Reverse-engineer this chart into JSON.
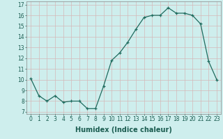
{
  "x": [
    0,
    1,
    2,
    3,
    4,
    5,
    6,
    7,
    8,
    9,
    10,
    11,
    12,
    13,
    14,
    15,
    16,
    17,
    18,
    19,
    20,
    21,
    22,
    23
  ],
  "y": [
    10.1,
    8.5,
    8.0,
    8.5,
    7.9,
    8.0,
    8.0,
    7.3,
    7.3,
    9.4,
    11.8,
    12.5,
    13.5,
    14.7,
    15.8,
    16.0,
    16.0,
    16.7,
    16.2,
    16.2,
    16.0,
    15.2,
    11.7,
    10.0
  ],
  "x_ticks": [
    0,
    1,
    2,
    3,
    4,
    5,
    6,
    7,
    8,
    9,
    10,
    11,
    12,
    13,
    14,
    15,
    16,
    17,
    18,
    19,
    20,
    21,
    22,
    23
  ],
  "x_tick_labels": [
    "0",
    "1",
    "2",
    "3",
    "4",
    "5",
    "6",
    "7",
    "8",
    "9",
    "10",
    "11",
    "12",
    "13",
    "14",
    "15",
    "16",
    "17",
    "18",
    "19",
    "20",
    "21",
    "22",
    "23"
  ],
  "y_ticks": [
    7,
    8,
    9,
    10,
    11,
    12,
    13,
    14,
    15,
    16,
    17
  ],
  "xlabel": "Humidex (Indice chaleur)",
  "ylim": [
    6.8,
    17.3
  ],
  "xlim": [
    -0.5,
    23.5
  ],
  "line_color": "#1f6b5e",
  "marker_color": "#1f6b5e",
  "bg_color": "#ceeeed",
  "grid_color": "#d4b8b8",
  "tick_fontsize": 5.5,
  "label_fontsize": 7,
  "label_color": "#1a5c50"
}
